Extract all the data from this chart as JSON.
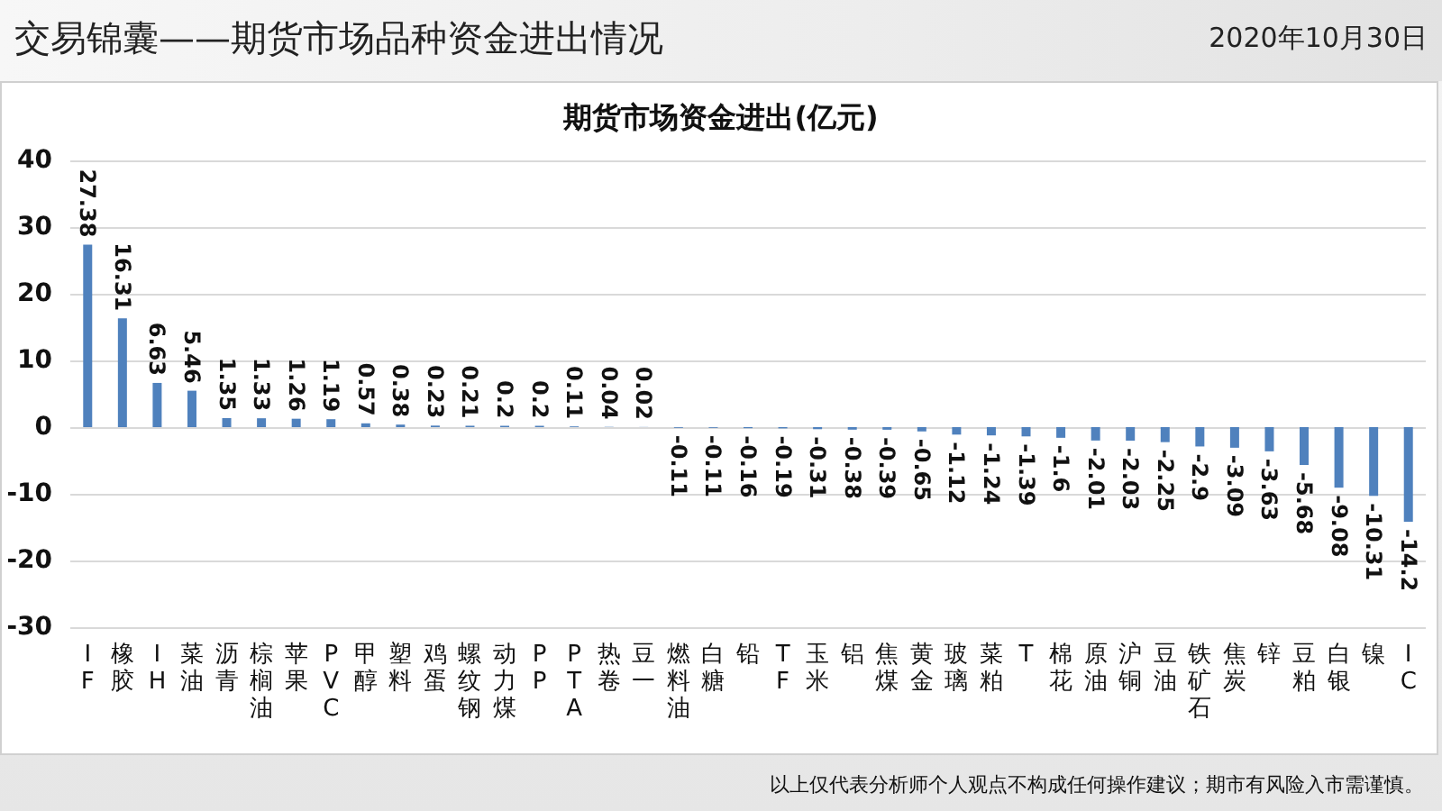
{
  "chart_data": {
    "type": "bar",
    "title": "交易锦囊——期货市场品种资金进出情况",
    "subtitle": "期货市场资金进出(亿元)",
    "annotations": [
      "2020年10月30日",
      "以上仅代表分析师个人观点不构成任何操作建议；期市有风险入市需谨慎。"
    ],
    "categories": [
      "IF",
      "橡胶",
      "IH",
      "菜油",
      "沥青",
      "棕榈油",
      "苹果",
      "PVC",
      "甲醇",
      "塑料",
      "鸡蛋",
      "螺纹钢",
      "动力煤",
      "PP",
      "PTA",
      "热卷",
      "豆一",
      "燃料油",
      "白糖",
      "铅",
      "TF",
      "玉米",
      "铝",
      "焦煤",
      "黄金",
      "玻璃",
      "菜粕",
      "T",
      "棉花",
      "原油",
      "沪铜",
      "豆油",
      "铁矿石",
      "焦炭",
      "锌",
      "豆粕",
      "白银",
      "镍",
      "IC"
    ],
    "values": [
      27.38,
      16.31,
      6.63,
      5.46,
      1.35,
      1.33,
      1.26,
      1.19,
      0.57,
      0.38,
      0.23,
      0.21,
      0.2,
      0.2,
      0.11,
      0.04,
      0.02,
      -0.11,
      -0.11,
      -0.16,
      -0.19,
      -0.31,
      -0.38,
      -0.39,
      -0.65,
      -1.12,
      -1.24,
      -1.39,
      -1.6,
      -2.01,
      -2.03,
      -2.25,
      -2.9,
      -3.09,
      -3.63,
      -5.68,
      -9.08,
      -10.31,
      -14.2
    ],
    "color": "#4f81bd",
    "ylim": [
      -30,
      40
    ],
    "yticks": [
      -30,
      -20,
      -10,
      0,
      10,
      20,
      30,
      40
    ],
    "grid": "y",
    "data_labels": true
  }
}
